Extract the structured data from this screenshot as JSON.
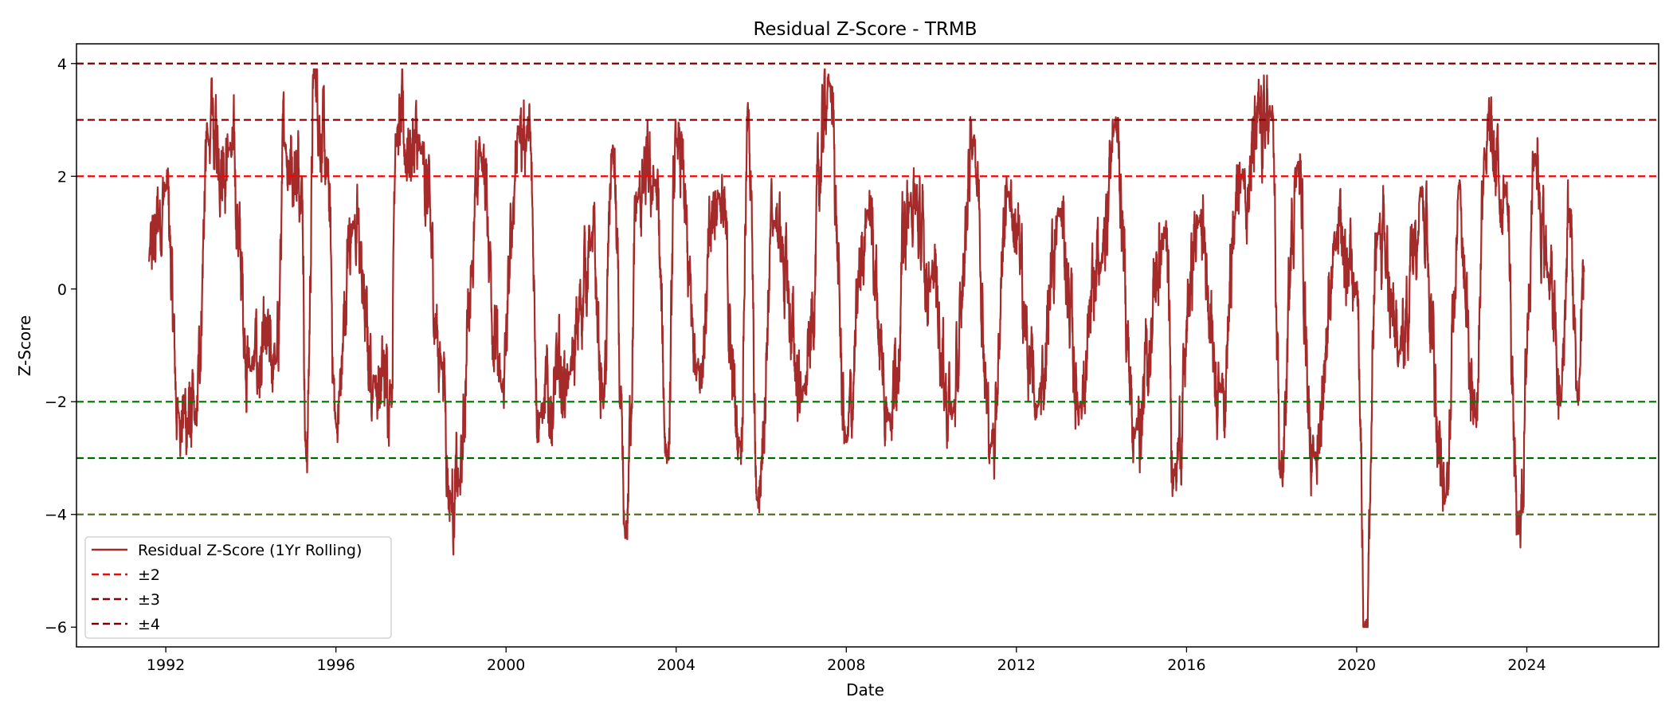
{
  "chart_data": {
    "type": "line",
    "title": "Residual Z-Score - TRMB",
    "xlabel": "Date",
    "ylabel": "Z-Score",
    "xlim": [
      1989.9,
      2027.1
    ],
    "ylim": [
      -6.35,
      4.35
    ],
    "x_ticks": [
      1992,
      1996,
      2000,
      2004,
      2008,
      2012,
      2016,
      2020,
      2024
    ],
    "x_tick_labels": [
      "1992",
      "1996",
      "2000",
      "2004",
      "2008",
      "2012",
      "2016",
      "2020",
      "2024"
    ],
    "y_ticks": [
      4,
      2,
      0,
      -2,
      -4,
      -6
    ],
    "y_tick_labels": [
      "4",
      "2",
      "0",
      "−2",
      "−4",
      "−6"
    ],
    "grid": false,
    "legend_position": "lower-left",
    "series": [
      {
        "name": "Residual Z-Score (1Yr Rolling)",
        "color": "#a52a2a",
        "x_range": [
          1991.6,
          2025.35
        ],
        "key_points": [
          [
            1991.6,
            0.5
          ],
          [
            1992.0,
            1.75
          ],
          [
            1992.3,
            -2.2
          ],
          [
            1992.7,
            -2.4
          ],
          [
            1993.0,
            2.65
          ],
          [
            1993.5,
            2.5
          ],
          [
            1994.0,
            -1.4
          ],
          [
            1994.6,
            -1.3
          ],
          [
            1994.8,
            2.6
          ],
          [
            1995.2,
            2.0
          ],
          [
            1995.3,
            -3.0
          ],
          [
            1995.5,
            3.82
          ],
          [
            1995.8,
            2.0
          ],
          [
            1996.0,
            -2.4
          ],
          [
            1996.4,
            1.2
          ],
          [
            1996.9,
            -1.6
          ],
          [
            1997.3,
            -1.7
          ],
          [
            1997.4,
            2.75
          ],
          [
            1998.0,
            2.4
          ],
          [
            1998.5,
            -1.3
          ],
          [
            1998.7,
            -3.7
          ],
          [
            1998.9,
            -3.5
          ],
          [
            1999.2,
            0.5
          ],
          [
            1999.4,
            2.4
          ],
          [
            1999.9,
            -1.8
          ],
          [
            2000.3,
            2.8
          ],
          [
            2000.5,
            2.85
          ],
          [
            2000.8,
            -2.2
          ],
          [
            2001.5,
            -1.5
          ],
          [
            2002.0,
            0.8
          ],
          [
            2002.3,
            -2.0
          ],
          [
            2002.5,
            2.45
          ],
          [
            2002.8,
            -4.42
          ],
          [
            2003.1,
            1.6
          ],
          [
            2003.5,
            1.9
          ],
          [
            2003.8,
            -2.9
          ],
          [
            2004.0,
            2.6
          ],
          [
            2004.5,
            -1.3
          ],
          [
            2005.0,
            1.7
          ],
          [
            2005.5,
            -2.7
          ],
          [
            2005.7,
            3.1
          ],
          [
            2005.9,
            -3.75
          ],
          [
            2006.3,
            1.2
          ],
          [
            2007.0,
            -1.8
          ],
          [
            2007.6,
            3.65
          ],
          [
            2008.0,
            -2.7
          ],
          [
            2008.5,
            1.4
          ],
          [
            2009.0,
            -2.2
          ],
          [
            2009.5,
            1.5
          ],
          [
            2010.0,
            0.2
          ],
          [
            2010.5,
            -2.2
          ],
          [
            2011.0,
            2.7
          ],
          [
            2011.4,
            -2.8
          ],
          [
            2011.8,
            1.7
          ],
          [
            2012.5,
            -2.1
          ],
          [
            2013.0,
            1.3
          ],
          [
            2013.5,
            -2.0
          ],
          [
            2014.0,
            0.5
          ],
          [
            2014.3,
            2.9
          ],
          [
            2014.8,
            -2.5
          ],
          [
            2015.5,
            0.9
          ],
          [
            2015.7,
            -3.2
          ],
          [
            2016.3,
            1.2
          ],
          [
            2016.8,
            -1.7
          ],
          [
            2017.3,
            2.0
          ],
          [
            2018.0,
            3.05
          ],
          [
            2018.2,
            -3.3
          ],
          [
            2018.6,
            2.2
          ],
          [
            2019.0,
            -3.0
          ],
          [
            2019.5,
            0.7
          ],
          [
            2020.0,
            0.1
          ],
          [
            2020.2,
            -5.9
          ],
          [
            2020.5,
            1.0
          ],
          [
            2021.0,
            -1.1
          ],
          [
            2021.5,
            1.8
          ],
          [
            2022.1,
            -3.7
          ],
          [
            2022.4,
            1.8
          ],
          [
            2022.8,
            -2.2
          ],
          [
            2023.0,
            2.5
          ],
          [
            2023.5,
            1.8
          ],
          [
            2023.8,
            -4.35
          ],
          [
            2024.2,
            2.4
          ],
          [
            2024.5,
            0.3
          ],
          [
            2024.8,
            -2.0
          ],
          [
            2025.0,
            1.3
          ],
          [
            2025.2,
            -1.9
          ],
          [
            2025.35,
            0.3
          ]
        ]
      },
      {
        "name": "±2",
        "color": "#ff0000",
        "dashed": true,
        "y": [
          2,
          -2
        ],
        "lower_color": "#008000"
      },
      {
        "name": "±3",
        "color": "#8b0000",
        "dashed": true,
        "y": [
          3,
          -3
        ],
        "lower_color": "#006400"
      },
      {
        "name": "±4",
        "color": "#800000",
        "dashed": true,
        "y": [
          4,
          -4
        ],
        "lower_color": "#556b2f"
      }
    ]
  }
}
